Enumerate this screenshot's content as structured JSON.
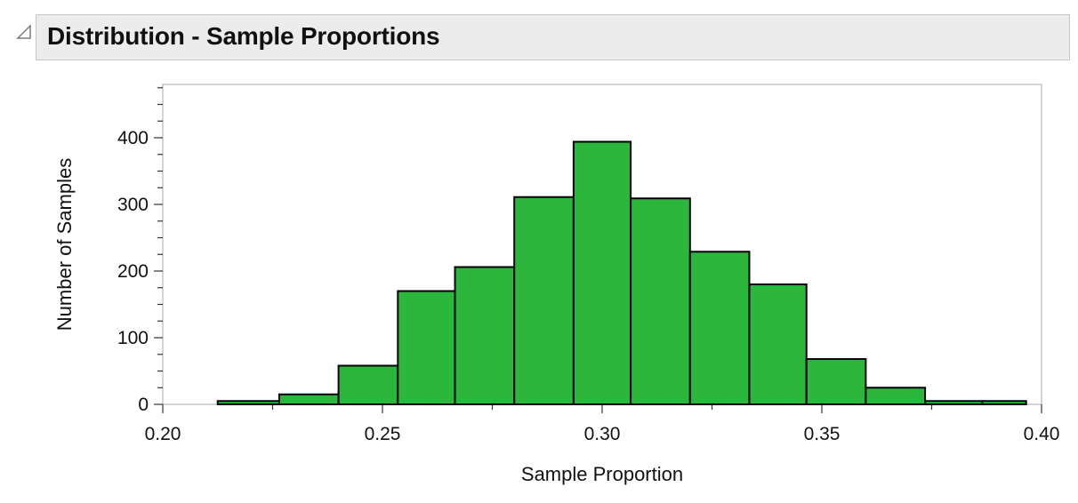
{
  "header": {
    "title": "Distribution - Sample Proportions"
  },
  "chart_data": {
    "type": "bar",
    "title": "Distribution - Sample Proportions",
    "xlabel": "Sample Proportion",
    "ylabel": "Number of Samples",
    "xlim": [
      0.2,
      0.4
    ],
    "ylim": [
      0,
      480
    ],
    "x_ticks": [
      "0.20",
      "0.25",
      "0.30",
      "0.35",
      "0.40"
    ],
    "y_ticks": [
      "0",
      "100",
      "200",
      "300",
      "400"
    ],
    "bar_color": "#2db63c",
    "bins": [
      {
        "start": 0.2125,
        "end": 0.2265,
        "value": 5
      },
      {
        "start": 0.2265,
        "end": 0.24,
        "value": 15
      },
      {
        "start": 0.24,
        "end": 0.2535,
        "value": 58
      },
      {
        "start": 0.2535,
        "end": 0.2665,
        "value": 170
      },
      {
        "start": 0.2665,
        "end": 0.28,
        "value": 206
      },
      {
        "start": 0.28,
        "end": 0.2935,
        "value": 311
      },
      {
        "start": 0.2935,
        "end": 0.3065,
        "value": 394
      },
      {
        "start": 0.3065,
        "end": 0.32,
        "value": 309
      },
      {
        "start": 0.32,
        "end": 0.3335,
        "value": 229
      },
      {
        "start": 0.3335,
        "end": 0.3465,
        "value": 180
      },
      {
        "start": 0.3465,
        "end": 0.36,
        "value": 68
      },
      {
        "start": 0.36,
        "end": 0.3735,
        "value": 25
      },
      {
        "start": 0.3735,
        "end": 0.3865,
        "value": 5
      },
      {
        "start": 0.3865,
        "end": 0.3965,
        "value": 5
      }
    ]
  }
}
